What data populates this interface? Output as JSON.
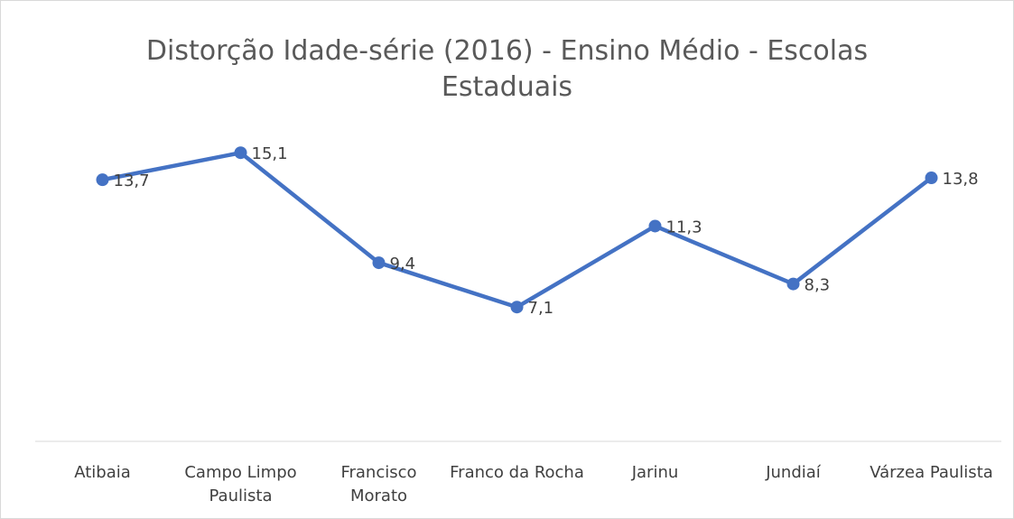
{
  "chart_data": {
    "type": "line",
    "title": "Distorção Idade-série (2016) - Ensino Médio - Escolas Estaduais",
    "categories": [
      "Atibaia",
      "Campo Limpo Paulista",
      "Francisco Morato",
      "Franco da Rocha",
      "Jarinu",
      "Jundiaí",
      "Várzea Paulista"
    ],
    "series": [
      {
        "name": "Distorção Idade-série",
        "color": "#4472c4",
        "values": [
          13.7,
          15.1,
          9.4,
          7.1,
          11.3,
          8.3,
          13.8
        ],
        "value_labels": [
          "13,7",
          "15,1",
          "9,4",
          "7,1",
          "11,3",
          "8,3",
          "13,8"
        ]
      }
    ],
    "ylim": [
      0,
      16
    ]
  }
}
